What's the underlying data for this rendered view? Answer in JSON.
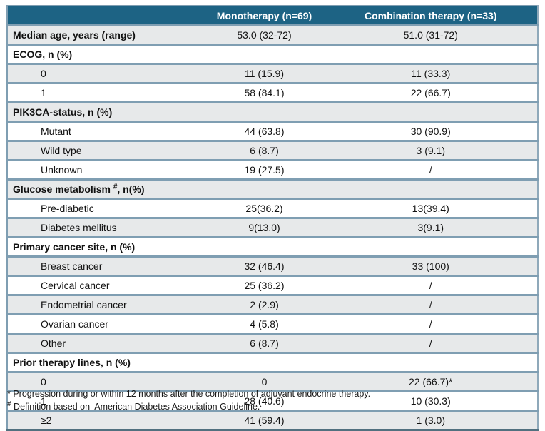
{
  "colors": {
    "header_bg": "#1d6384",
    "header_text": "#ffffff",
    "stripe_gray": "#e7e9ea",
    "stripe_white": "#ffffff",
    "row_border": "#7f9eb2",
    "bottom_border": "#51707f"
  },
  "table": {
    "columns": [
      {
        "label": ""
      },
      {
        "label": "Monotherapy (n=69)"
      },
      {
        "label": "Combination therapy (n=33)"
      }
    ],
    "rows": [
      {
        "label": "Median age, years (range)",
        "bold": true,
        "indent": false,
        "mono": "53.0 (32-72)",
        "combo": "51.0 (31-72)"
      },
      {
        "label": "ECOG, n (%)",
        "bold": true,
        "indent": false,
        "mono": "",
        "combo": ""
      },
      {
        "label": "0",
        "bold": false,
        "indent": true,
        "mono": "11 (15.9)",
        "combo": "11 (33.3)"
      },
      {
        "label": "1",
        "bold": false,
        "indent": true,
        "mono": "58 (84.1)",
        "combo": "22 (66.7)"
      },
      {
        "label": "PIK3CA-status, n (%)",
        "bold": true,
        "indent": false,
        "mono": "",
        "combo": ""
      },
      {
        "label": "Mutant",
        "bold": false,
        "indent": true,
        "mono": "44 (63.8)",
        "combo": "30 (90.9)"
      },
      {
        "label": "Wild type",
        "bold": false,
        "indent": true,
        "mono": "6 (8.7)",
        "combo": "3 (9.1)"
      },
      {
        "label": "Unknown",
        "bold": false,
        "indent": true,
        "mono": "19 (27.5)",
        "combo": "/"
      },
      {
        "label": "Glucose metabolism ",
        "sup": "#",
        "suffix": ", n(%)",
        "bold": true,
        "indent": false,
        "mono": "",
        "combo": ""
      },
      {
        "label": "Pre-diabetic",
        "bold": false,
        "indent": true,
        "mono": "25(36.2)",
        "combo": "13(39.4)"
      },
      {
        "label": "Diabetes mellitus",
        "bold": false,
        "indent": true,
        "mono": "9(13.0)",
        "combo": "3(9.1)"
      },
      {
        "label": "Primary cancer site, n (%)",
        "bold": true,
        "indent": false,
        "mono": "",
        "combo": ""
      },
      {
        "label": "Breast cancer",
        "bold": false,
        "indent": true,
        "mono": "32 (46.4)",
        "combo": "33 (100)"
      },
      {
        "label": "Cervical cancer",
        "bold": false,
        "indent": true,
        "mono": "25 (36.2)",
        "combo": "/"
      },
      {
        "label": "Endometrial cancer",
        "bold": false,
        "indent": true,
        "mono": "2 (2.9)",
        "combo": "/"
      },
      {
        "label": "Ovarian cancer",
        "bold": false,
        "indent": true,
        "mono": "4 (5.8)",
        "combo": "/"
      },
      {
        "label": "Other",
        "bold": false,
        "indent": true,
        "mono": "6 (8.7)",
        "combo": "/"
      },
      {
        "label": "Prior therapy lines, n (%)",
        "bold": true,
        "indent": false,
        "mono": "",
        "combo": ""
      },
      {
        "label": "0",
        "bold": false,
        "indent": true,
        "mono": "0",
        "combo": "22 (66.7)*"
      },
      {
        "label": "1",
        "bold": false,
        "indent": true,
        "mono": "28 (40.6)",
        "combo": "10 (30.3)"
      },
      {
        "label": "≥2",
        "bold": false,
        "indent": true,
        "mono": "41 (59.4)",
        "combo": "1 (3.0)"
      }
    ]
  },
  "footnotes": [
    {
      "marker": "*",
      "marker_superscript": false,
      "text": " Progression during or within 12 months after the completion of adjuvant endocrine therapy."
    },
    {
      "marker": "#",
      "marker_superscript": true,
      "text": " Definition based on  American Diabetes Association Guideline."
    }
  ]
}
